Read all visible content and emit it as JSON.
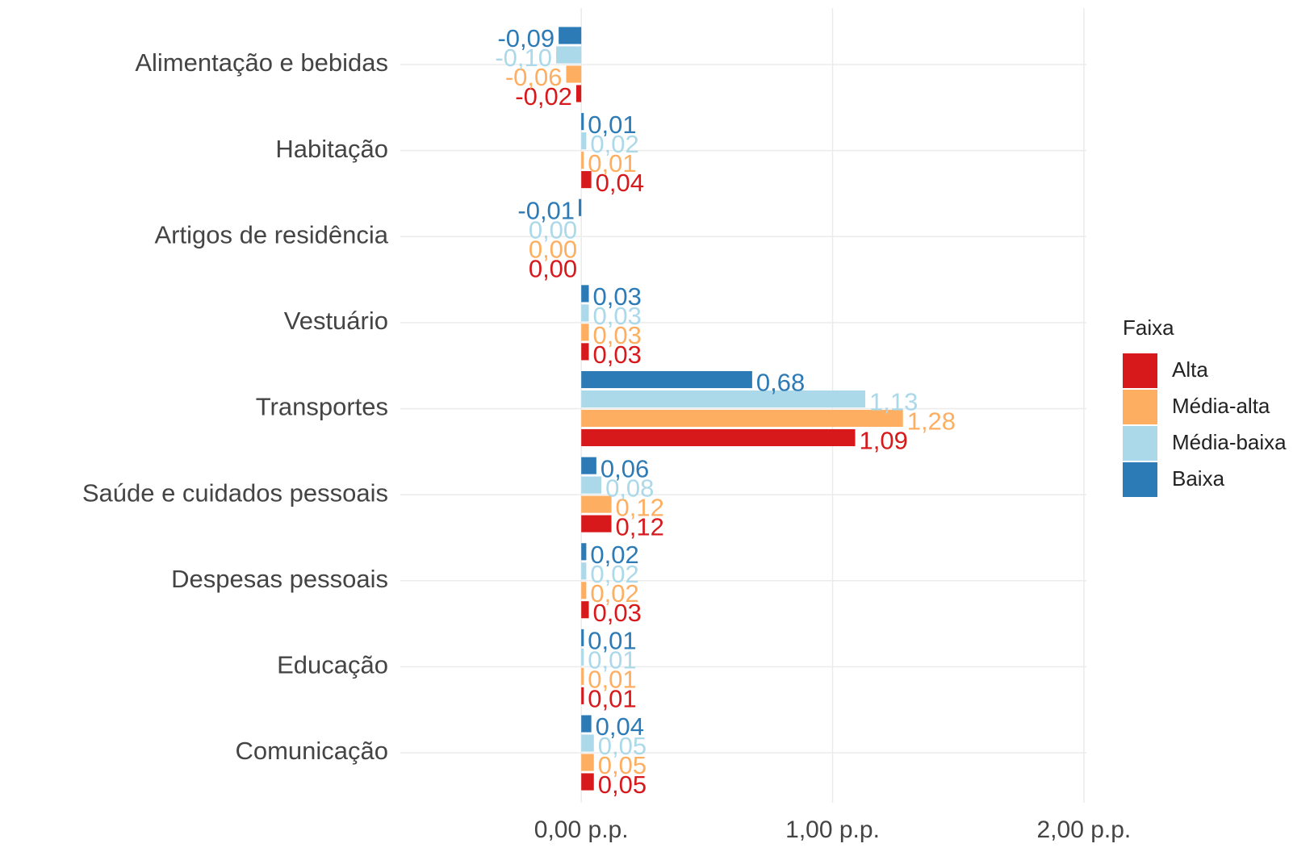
{
  "chart_data": {
    "type": "hbar",
    "categories": [
      "Alimentação e bebidas",
      "Habitação",
      "Artigos de residência",
      "Vestuário",
      "Transportes",
      "Saúde e cuidados pessoais",
      "Despesas pessoais",
      "Educação",
      "Comunicação"
    ],
    "series": [
      {
        "name": "Alta",
        "color": "#d7191c",
        "values": [
          -0.02,
          0.04,
          0.0,
          0.03,
          1.09,
          0.12,
          0.03,
          0.01,
          0.05
        ],
        "value_labels": [
          "-0,02",
          "0,04",
          "0,00",
          "0,03",
          "1,09",
          "0,12",
          "0,03",
          "0,01",
          "0,05"
        ]
      },
      {
        "name": "Média-alta",
        "color": "#fdae61",
        "values": [
          -0.06,
          0.01,
          0.0,
          0.03,
          1.28,
          0.12,
          0.02,
          0.01,
          0.05
        ],
        "value_labels": [
          "-0,06",
          "0,01",
          "0,00",
          "0,03",
          "1,28",
          "0,12",
          "0,02",
          "0,01",
          "0,05"
        ]
      },
      {
        "name": "Média-baixa",
        "color": "#abd9e9",
        "values": [
          -0.1,
          0.02,
          0.0,
          0.03,
          1.13,
          0.08,
          0.02,
          0.01,
          0.05
        ],
        "value_labels": [
          "-0,10",
          "0,02",
          "0,00",
          "0,03",
          "1,13",
          "0,08",
          "0,02",
          "0,01",
          "0,05"
        ]
      },
      {
        "name": "Baixa",
        "color": "#2c7bb6",
        "values": [
          -0.09,
          0.01,
          -0.01,
          0.03,
          0.68,
          0.06,
          0.02,
          0.01,
          0.04
        ],
        "value_labels": [
          "-0,09",
          "0,01",
          "-0,01",
          "0,03",
          "0,68",
          "0,06",
          "0,02",
          "0,01",
          "0,04"
        ]
      }
    ],
    "legend_title": "Faixa",
    "legend_position": "right",
    "xlim": [
      -0.72,
      2.01
    ],
    "xticks": [
      {
        "value": 0,
        "label": "0,00 p.p."
      },
      {
        "value": 1,
        "label": "1,00 p.p."
      },
      {
        "value": 2,
        "label": "2,00 p.p."
      }
    ],
    "grid": true
  }
}
